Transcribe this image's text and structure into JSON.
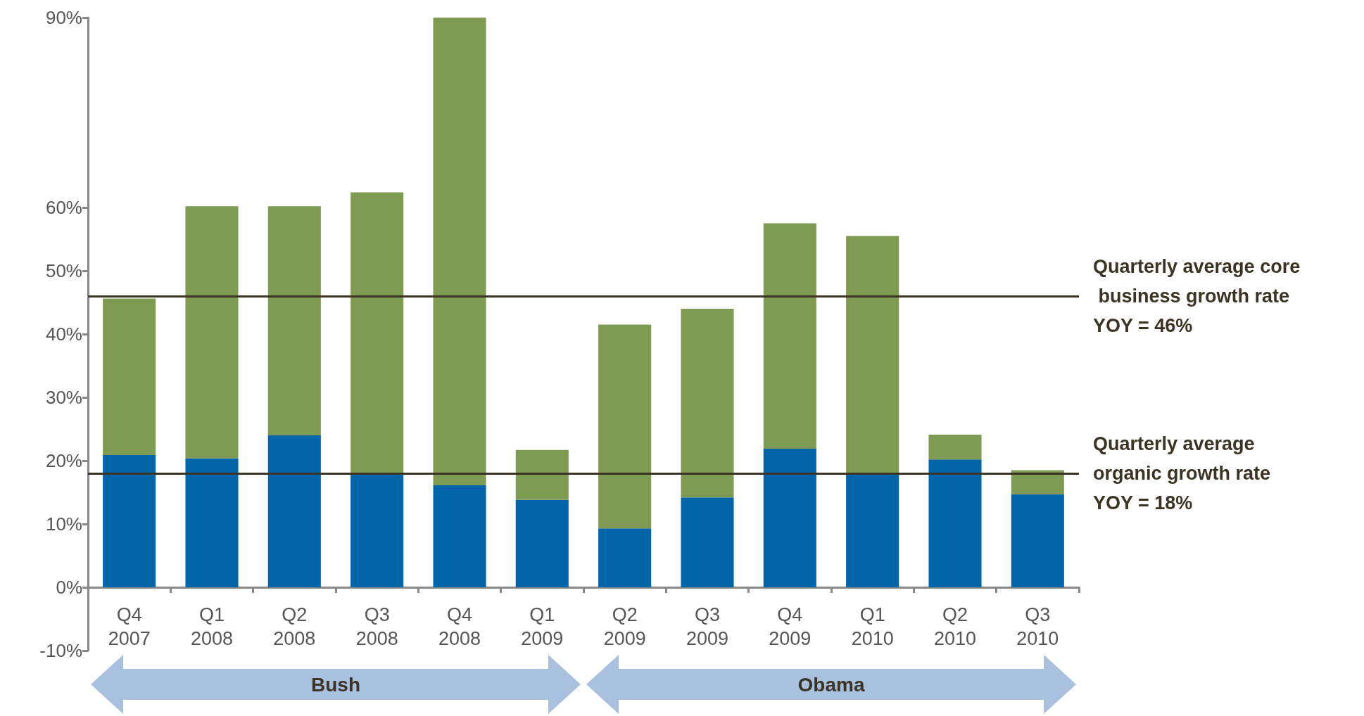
{
  "chart_data": {
    "type": "bar",
    "stacked": true,
    "grid": false,
    "categories": [
      "Q4 2007",
      "Q1 2008",
      "Q2 2008",
      "Q3 2008",
      "Q4 2008",
      "Q1 2009",
      "Q2 2009",
      "Q3 2009",
      "Q4 2009",
      "Q1 2010",
      "Q2 2010",
      "Q3 2010"
    ],
    "series": [
      {
        "color": "#0066a9",
        "values": [
          20.9,
          20.4,
          24.0,
          18.0,
          16.1,
          13.8,
          9.3,
          14.2,
          21.9,
          17.8,
          20.2,
          14.7
        ]
      },
      {
        "color": "#7f9a52",
        "values": [
          24.7,
          39.8,
          36.2,
          44.4,
          73.9,
          7.9,
          32.2,
          29.8,
          35.6,
          37.7,
          3.9,
          3.8
        ]
      }
    ],
    "ylim": [
      -10,
      90
    ],
    "yticks": [
      {
        "value": -10,
        "label": "-10%"
      },
      {
        "value": 0,
        "label": "0%"
      },
      {
        "value": 10,
        "label": "10%"
      },
      {
        "value": 20,
        "label": "20%"
      },
      {
        "value": 30,
        "label": "30%"
      },
      {
        "value": 40,
        "label": "40%"
      },
      {
        "value": 50,
        "label": "50%"
      },
      {
        "value": 60,
        "label": "60%"
      },
      {
        "value": 90,
        "label": "90%"
      }
    ],
    "ref_lines": [
      {
        "axis": "y",
        "value": 46,
        "label": "Quarterly average core business growth rate YOY = 46%",
        "color": "#3b3323"
      },
      {
        "axis": "y",
        "value": 18,
        "label": "Quarterly average organic growth rate YOY = 18%",
        "color": "#3b3323"
      }
    ],
    "annotations": [
      "Bush",
      "Obama"
    ]
  }
}
